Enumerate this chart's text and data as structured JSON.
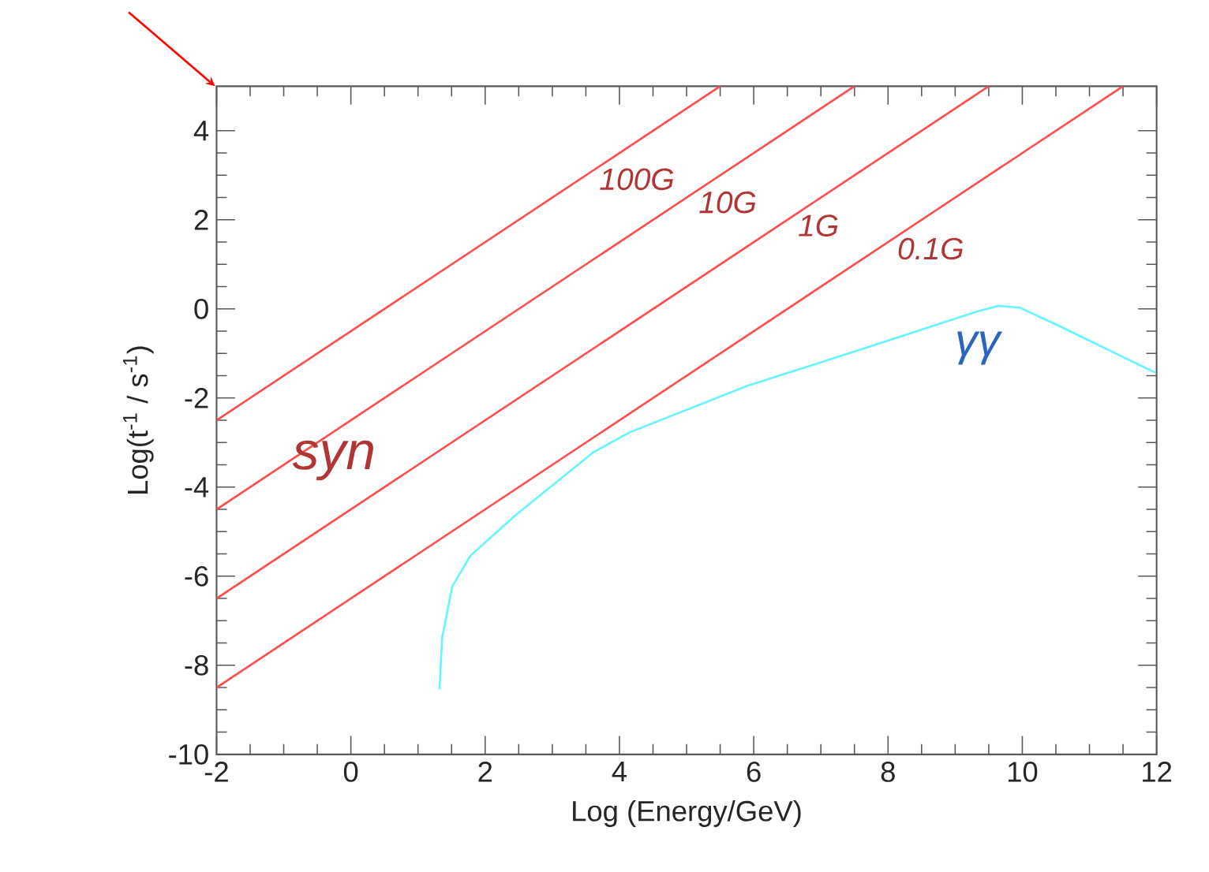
{
  "chart_data": {
    "type": "line",
    "xlabel": "Log (Energy/GeV)",
    "ylabel": "Log(t$^{-1}$ / s$^{-1}$)",
    "xlim": [
      -2,
      12
    ],
    "ylim": [
      -10,
      5
    ],
    "xticks": [
      -2,
      0,
      2,
      4,
      6,
      8,
      10,
      12
    ],
    "yticks": [
      -10,
      -8,
      -6,
      -4,
      -2,
      0,
      2,
      4
    ],
    "grid": false,
    "marker": "none",
    "line_style": "solid",
    "series": [
      {
        "name": "100G",
        "color": "#ff4c4c",
        "x": [
          -2,
          5.5
        ],
        "values": [
          -2.5,
          5
        ]
      },
      {
        "name": "10G",
        "color": "#ff4c4c",
        "x": [
          -2,
          7.5
        ],
        "values": [
          -4.5,
          5
        ]
      },
      {
        "name": "1G",
        "color": "#ff4c4c",
        "x": [
          -2,
          9.5
        ],
        "values": [
          -6.5,
          5
        ]
      },
      {
        "name": "0.1G",
        "color": "#ff4c4c",
        "x": [
          -2,
          11.5
        ],
        "values": [
          -8.5,
          5
        ]
      },
      {
        "name": "γγ",
        "color": "#66f4ff",
        "x": [
          1.32,
          1.36,
          1.51,
          1.78,
          2.47,
          3.61,
          4.15,
          5.9,
          7.82,
          9.34,
          9.65,
          9.96,
          10.49,
          11.98
        ],
        "values": [
          -8.54,
          -7.38,
          -6.23,
          -5.54,
          -4.61,
          -3.22,
          -2.77,
          -1.73,
          -0.8,
          -0.05,
          0.07,
          0.03,
          -0.34,
          -1.43
        ]
      }
    ],
    "annotations": [
      "syn"
    ]
  }
}
